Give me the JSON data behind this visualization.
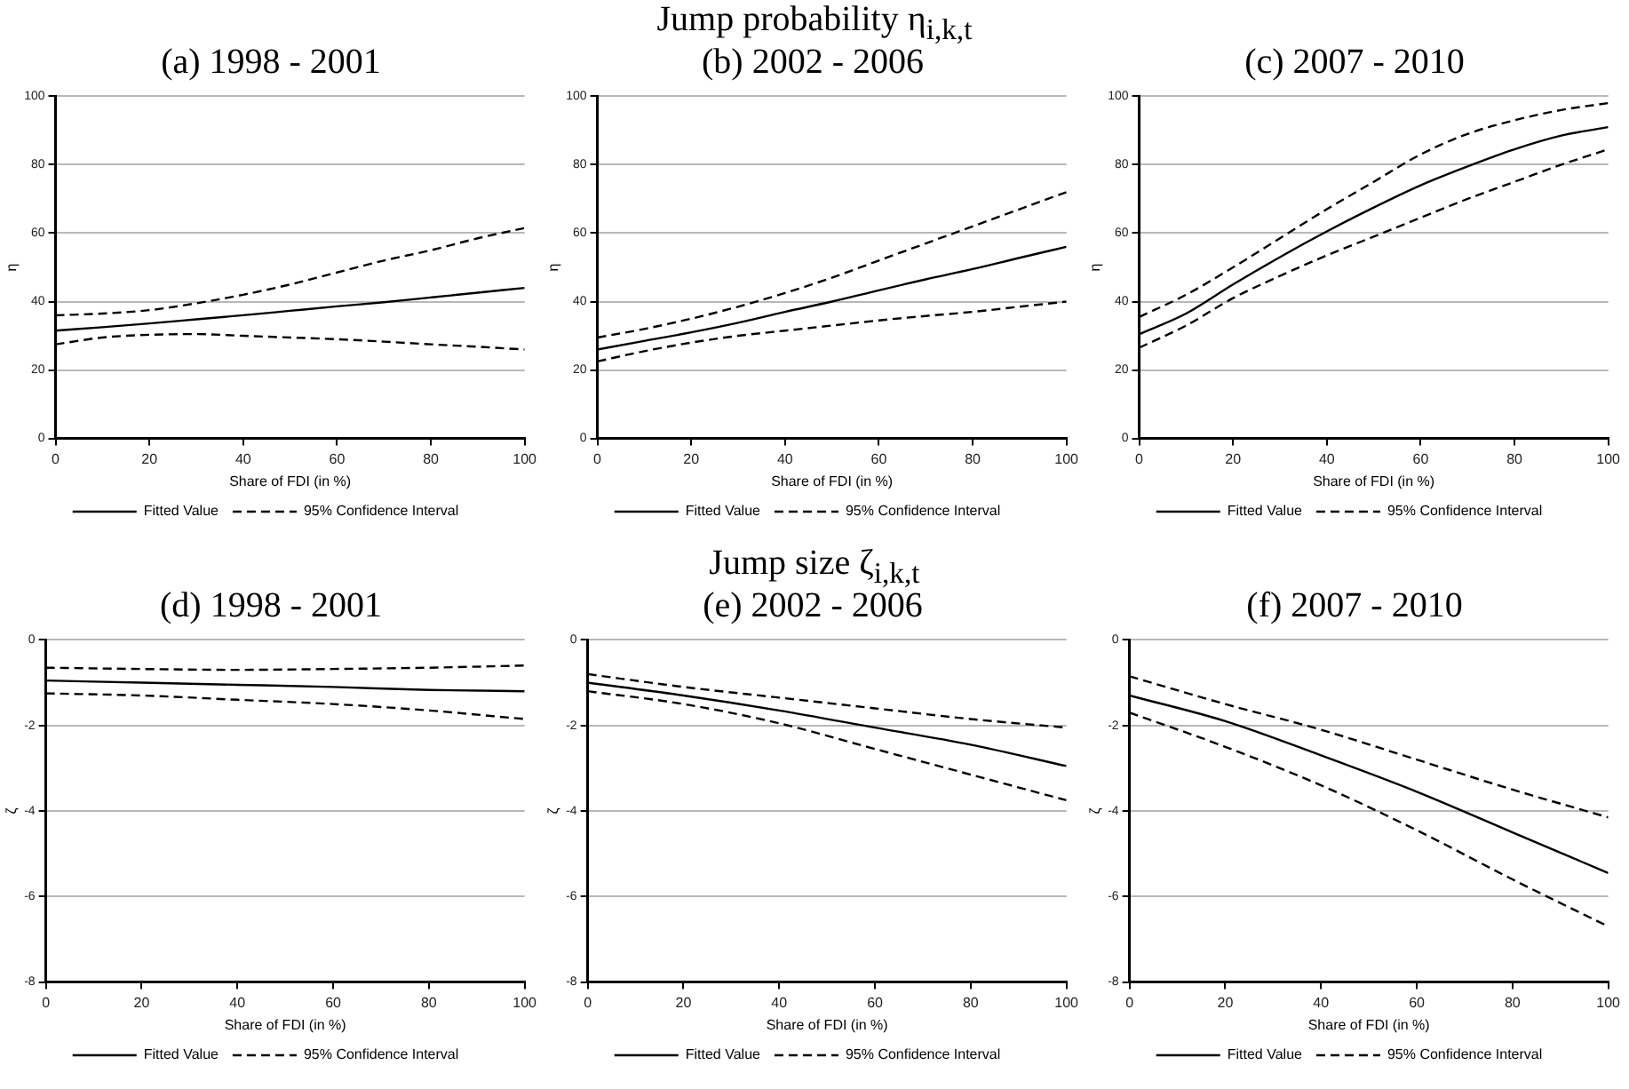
{
  "chart_data": [
    {
      "type": "line",
      "title": "(a) 1998 - 2001",
      "annotations": [
        "Jump probability η$_{i,k,t}$"
      ],
      "xlabel": "Share of FDI (in %)",
      "ylabel": "η",
      "x": [
        0,
        10,
        20,
        30,
        40,
        50,
        60,
        70,
        80,
        90,
        100
      ],
      "xlim": [
        0,
        100
      ],
      "xticks": [
        0,
        20,
        40,
        60,
        80,
        100
      ],
      "ylim": [
        0,
        100
      ],
      "yticks": [
        0,
        20,
        40,
        60,
        80,
        100
      ],
      "grid": "y",
      "legend": "bottom",
      "marker": "none",
      "series": [
        {
          "name": "Fitted Value",
          "color": "#000000",
          "line_style": "solid",
          "values": [
            31.5,
            32.5,
            33.6,
            34.8,
            36,
            37.3,
            38.6,
            39.8,
            41.2,
            42.6,
            44
          ]
        },
        {
          "name": "95% Confidence Interval",
          "color": "#000000",
          "line_style": "dashed",
          "values": [
            36,
            36.5,
            37.5,
            39.5,
            42,
            45,
            48.5,
            52,
            55,
            58.5,
            61.5
          ]
        },
        {
          "color": "#000000",
          "line_style": "dashed",
          "values": [
            27.5,
            29.5,
            30.3,
            30.5,
            30,
            29.5,
            29,
            28.3,
            27.5,
            26.8,
            26
          ]
        }
      ]
    },
    {
      "type": "line",
      "title": "(b) 2002 - 2006",
      "xlabel": "Share of FDI (in %)",
      "ylabel": "η",
      "x": [
        0,
        10,
        20,
        30,
        40,
        50,
        60,
        70,
        80,
        90,
        100
      ],
      "xlim": [
        0,
        100
      ],
      "xticks": [
        0,
        20,
        40,
        60,
        80,
        100
      ],
      "ylim": [
        0,
        100
      ],
      "yticks": [
        0,
        20,
        40,
        60,
        80,
        100
      ],
      "grid": "y",
      "legend": "bottom",
      "marker": "none",
      "series": [
        {
          "name": "Fitted Value",
          "color": "#000000",
          "line_style": "solid",
          "values": [
            26,
            28.5,
            31,
            33.8,
            37,
            40,
            43.3,
            46.5,
            49.5,
            52.8,
            56
          ]
        },
        {
          "name": "95% Confidence Interval",
          "color": "#000000",
          "line_style": "dashed",
          "values": [
            29.5,
            32,
            35,
            38.5,
            42.5,
            47,
            52,
            57,
            62,
            67,
            72
          ]
        },
        {
          "color": "#000000",
          "line_style": "dashed",
          "values": [
            22.5,
            25.5,
            28,
            30,
            31.5,
            33,
            34.5,
            35.8,
            37,
            38.5,
            40
          ]
        }
      ]
    },
    {
      "type": "line",
      "title": "(c) 2007 - 2010",
      "xlabel": "Share of FDI (in %)",
      "ylabel": "η",
      "x": [
        0,
        10,
        20,
        30,
        40,
        50,
        60,
        70,
        80,
        90,
        100
      ],
      "xlim": [
        0,
        100
      ],
      "xticks": [
        0,
        20,
        40,
        60,
        80,
        100
      ],
      "ylim": [
        0,
        100
      ],
      "yticks": [
        0,
        20,
        40,
        60,
        80,
        100
      ],
      "grid": "y",
      "legend": "bottom",
      "marker": "none",
      "series": [
        {
          "name": "Fitted Value",
          "color": "#000000",
          "line_style": "solid",
          "values": [
            30.5,
            36.5,
            45,
            53,
            60.5,
            67.5,
            74,
            79.5,
            84.5,
            88.5,
            91
          ]
        },
        {
          "name": "95% Confidence Interval",
          "color": "#000000",
          "line_style": "dashed",
          "values": [
            35.5,
            42,
            50,
            58.5,
            67,
            75,
            83,
            89,
            93,
            96,
            98
          ]
        },
        {
          "color": "#000000",
          "line_style": "dashed",
          "values": [
            26.5,
            33,
            41,
            47.5,
            53.5,
            59,
            64.5,
            70,
            75,
            80,
            84.5
          ]
        }
      ]
    },
    {
      "type": "line",
      "title": "(d) 1998 - 2001",
      "annotations": [
        "Jump size ζ$_{i,k,t}$"
      ],
      "xlabel": "Share of FDI (in %)",
      "ylabel": "ζ",
      "x": [
        0,
        20,
        40,
        60,
        80,
        100
      ],
      "xlim": [
        0,
        100
      ],
      "xticks": [
        0,
        20,
        40,
        60,
        80,
        100
      ],
      "ylim": [
        -8,
        0
      ],
      "yticks": [
        -8,
        -6,
        -4,
        -2,
        0
      ],
      "grid": "y",
      "legend": "bottom",
      "marker": "none",
      "series": [
        {
          "name": "Fitted Value",
          "color": "#000000",
          "line_style": "solid",
          "values": [
            -0.95,
            -1.0,
            -1.05,
            -1.1,
            -1.17,
            -1.2
          ]
        },
        {
          "name": "95% Confidence Interval",
          "color": "#000000",
          "line_style": "dashed",
          "values": [
            -0.65,
            -0.68,
            -0.7,
            -0.68,
            -0.65,
            -0.6
          ]
        },
        {
          "color": "#000000",
          "line_style": "dashed",
          "values": [
            -1.25,
            -1.3,
            -1.4,
            -1.5,
            -1.65,
            -1.85
          ]
        }
      ]
    },
    {
      "type": "line",
      "title": "(e) 2002 - 2006",
      "xlabel": "Share of FDI (in %)",
      "ylabel": "ζ",
      "x": [
        0,
        20,
        40,
        60,
        80,
        100
      ],
      "xlim": [
        0,
        100
      ],
      "xticks": [
        0,
        20,
        40,
        60,
        80,
        100
      ],
      "ylim": [
        -8,
        0
      ],
      "yticks": [
        -8,
        -6,
        -4,
        -2,
        0
      ],
      "grid": "y",
      "legend": "bottom",
      "marker": "none",
      "series": [
        {
          "name": "Fitted Value",
          "color": "#000000",
          "line_style": "solid",
          "values": [
            -1.0,
            -1.3,
            -1.65,
            -2.05,
            -2.45,
            -2.95
          ]
        },
        {
          "name": "95% Confidence Interval",
          "color": "#000000",
          "line_style": "dashed",
          "values": [
            -0.8,
            -1.1,
            -1.35,
            -1.6,
            -1.85,
            -2.05
          ]
        },
        {
          "color": "#000000",
          "line_style": "dashed",
          "values": [
            -1.2,
            -1.5,
            -1.95,
            -2.55,
            -3.15,
            -3.75
          ]
        }
      ]
    },
    {
      "type": "line",
      "title": "(f) 2007 - 2010",
      "xlabel": "Share of FDI (in %)",
      "ylabel": "ζ",
      "x": [
        0,
        20,
        40,
        60,
        80,
        100
      ],
      "xlim": [
        0,
        100
      ],
      "xticks": [
        0,
        20,
        40,
        60,
        80,
        100
      ],
      "ylim": [
        -8,
        0
      ],
      "yticks": [
        -8,
        -6,
        -4,
        -2,
        0
      ],
      "grid": "y",
      "legend": "bottom",
      "marker": "none",
      "series": [
        {
          "name": "Fitted Value",
          "color": "#000000",
          "line_style": "solid",
          "values": [
            -1.3,
            -1.9,
            -2.7,
            -3.55,
            -4.5,
            -5.45
          ]
        },
        {
          "name": "95% Confidence Interval",
          "color": "#000000",
          "line_style": "dashed",
          "values": [
            -0.85,
            -1.5,
            -2.1,
            -2.8,
            -3.5,
            -4.15
          ]
        },
        {
          "color": "#000000",
          "line_style": "dashed",
          "values": [
            -1.7,
            -2.5,
            -3.4,
            -4.45,
            -5.6,
            -6.7
          ]
        }
      ]
    }
  ]
}
